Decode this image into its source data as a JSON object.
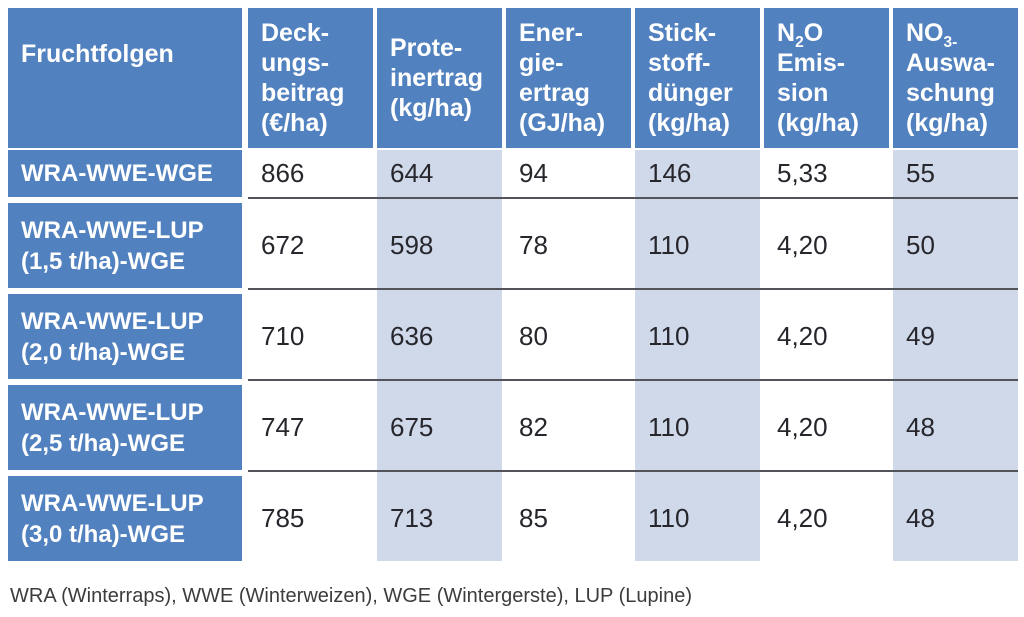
{
  "colors": {
    "header-blue": "#5181bf",
    "band-blue": "#cfd9ea",
    "divider": "#53535a",
    "value-text": "#26262c",
    "header-text": "#ffffff",
    "footnote-text": "#3c3c3c"
  },
  "table": {
    "header": {
      "fruchtfolgen": {
        "lines": [
          "Fruchtfolgen"
        ]
      },
      "deckungsbeitrag": {
        "lines": [
          "Deck-",
          "ungs-",
          "beitrag",
          "(€/ha)"
        ]
      },
      "proteinertrag": {
        "lines": [
          "Prote-",
          "inertrag",
          "(kg/ha)"
        ]
      },
      "energieertrag": {
        "lines": [
          "Ener-",
          "gie-",
          "ertrag",
          "(GJ/ha)"
        ]
      },
      "stickstoffduenger": {
        "lines": [
          "Stick-",
          "stoff-",
          "dünger",
          "(kg/ha)"
        ]
      },
      "n2o_emission": {
        "base": "N",
        "sub": "2",
        "after": "O",
        "rest": [
          "Emis-",
          "sion",
          "(kg/ha)"
        ]
      },
      "no3_auswaschung": {
        "base": "NO",
        "sub": "3-",
        "after": "",
        "rest": [
          "Auswa-",
          "schung",
          "(kg/ha)"
        ]
      }
    },
    "rows": [
      {
        "label": [
          "WRA-WWE-WGE"
        ],
        "values": [
          "866",
          "644",
          "94",
          "146",
          "5,33",
          "55"
        ]
      },
      {
        "label": [
          "WRA-WWE-LUP",
          "(1,5 t/ha)-WGE"
        ],
        "values": [
          "672",
          "598",
          "78",
          "110",
          "4,20",
          "50"
        ]
      },
      {
        "label": [
          "WRA-WWE-LUP",
          "(2,0 t/ha)-WGE"
        ],
        "values": [
          "710",
          "636",
          "80",
          "110",
          "4,20",
          "49"
        ]
      },
      {
        "label": [
          "WRA-WWE-LUP",
          "(2,5 t/ha)-WGE"
        ],
        "values": [
          "747",
          "675",
          "82",
          "110",
          "4,20",
          "48"
        ]
      },
      {
        "label": [
          "WRA-WWE-LUP",
          "(3,0 t/ha)-WGE"
        ],
        "values": [
          "785",
          "713",
          "85",
          "110",
          "4,20",
          "48"
        ]
      }
    ]
  },
  "footnote": "WRA (Winterraps), WWE (Winterweizen), WGE (Wintergerste), LUP (Lupine)"
}
